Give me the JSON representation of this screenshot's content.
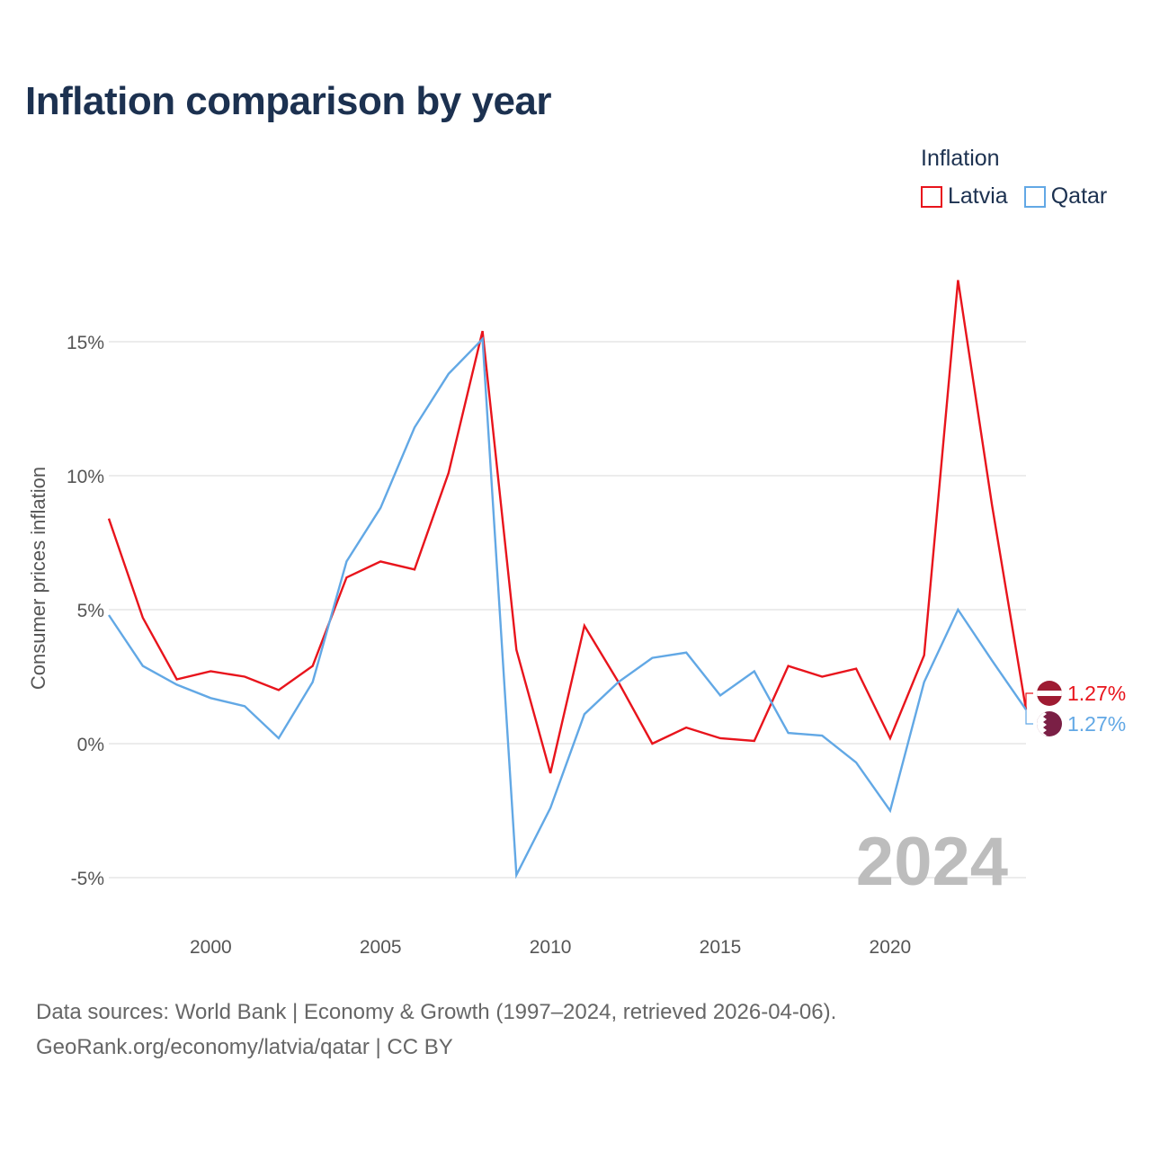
{
  "header": {
    "title": "Inflation comparison by year"
  },
  "legend": {
    "title": "Inflation",
    "items": [
      {
        "label": "Latvia",
        "color": "#e8141c"
      },
      {
        "label": "Qatar",
        "color": "#62a8e5"
      }
    ]
  },
  "chart_data": {
    "type": "line",
    "title": "Inflation comparison by year",
    "xlabel": "",
    "ylabel": "Consumer prices inflation",
    "x": [
      1997,
      1998,
      1999,
      2000,
      2001,
      2002,
      2003,
      2004,
      2005,
      2006,
      2007,
      2008,
      2009,
      2010,
      2011,
      2012,
      2013,
      2014,
      2015,
      2016,
      2017,
      2018,
      2019,
      2020,
      2021,
      2022,
      2023,
      2024
    ],
    "xticks": [
      2000,
      2005,
      2010,
      2015,
      2020
    ],
    "xtick_labels": [
      "2000",
      "2005",
      "2010",
      "2015",
      "2020"
    ],
    "yticks": [
      -5,
      0,
      5,
      10,
      15
    ],
    "ytick_labels": [
      "-5%",
      "0%",
      "5%",
      "10%",
      "15%"
    ],
    "xlim": [
      1997,
      2024
    ],
    "ylim": [
      -6.5,
      18
    ],
    "series": [
      {
        "name": "Latvia",
        "color": "#e8141c",
        "values": [
          8.4,
          4.7,
          2.4,
          2.7,
          2.5,
          2.0,
          2.9,
          6.2,
          6.8,
          6.5,
          10.1,
          15.4,
          3.5,
          -1.1,
          4.4,
          2.3,
          0.0,
          0.6,
          0.2,
          0.1,
          2.9,
          2.5,
          2.8,
          0.2,
          3.3,
          17.3,
          8.9,
          1.27
        ],
        "end_label": "1.27%"
      },
      {
        "name": "Qatar",
        "color": "#62a8e5",
        "values": [
          4.8,
          2.9,
          2.2,
          1.7,
          1.4,
          0.2,
          2.3,
          6.8,
          8.8,
          11.8,
          13.8,
          15.1,
          -4.9,
          -2.4,
          1.1,
          2.3,
          3.2,
          3.4,
          1.8,
          2.7,
          0.4,
          0.3,
          -0.7,
          -2.5,
          2.3,
          5.0,
          3.1,
          1.27
        ],
        "end_label": "1.27%"
      }
    ],
    "current_year": "2024",
    "grid": true,
    "legend_position": "top-right"
  },
  "footer": {
    "source_line1": "Data sources: World Bank | Economy & Growth (1997–2024, retrieved 2026-04-06).",
    "source_line2": "GeoRank.org/economy/latvia/qatar | CC BY"
  }
}
